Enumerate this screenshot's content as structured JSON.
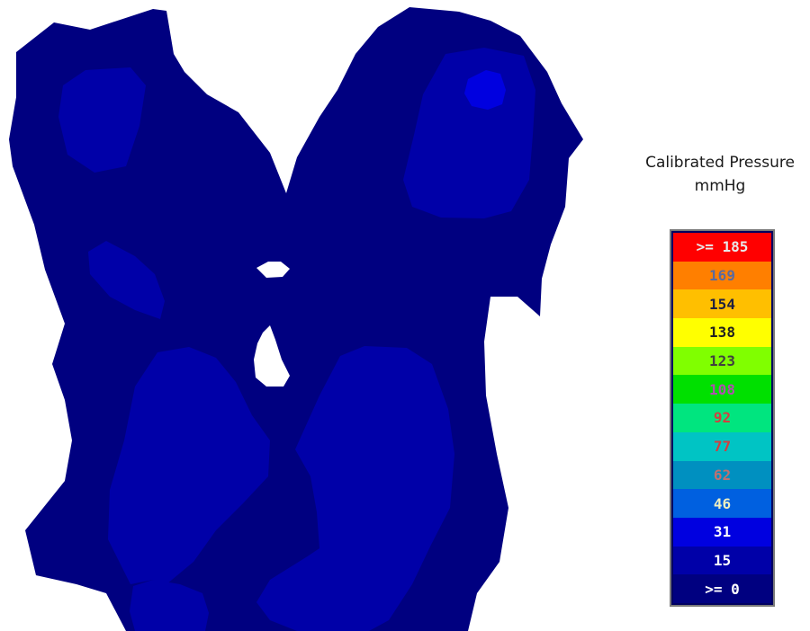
{
  "chart_data": {
    "type": "heatmap",
    "title": "Calibrated Pressure",
    "unit": "mmHg",
    "legend_placement": "right",
    "background": "#ffffff",
    "scale": [
      {
        "label": ">= 185",
        "color": "#ff0000",
        "text_color": "#e8e8e8"
      },
      {
        "label": "169",
        "color": "#ff7f00",
        "text_color": "#5a6aa0"
      },
      {
        "label": "154",
        "color": "#ffbf00",
        "text_color": "#202040"
      },
      {
        "label": "138",
        "color": "#ffff00",
        "text_color": "#202020"
      },
      {
        "label": "123",
        "color": "#80ff00",
        "text_color": "#404040"
      },
      {
        "label": "108",
        "color": "#00e000",
        "text_color": "#b050b0"
      },
      {
        "label": "92",
        "color": "#00e57f",
        "text_color": "#d04040"
      },
      {
        "label": "77",
        "color": "#00c4c4",
        "text_color": "#d04040"
      },
      {
        "label": "62",
        "color": "#0090c0",
        "text_color": "#c07070"
      },
      {
        "label": "46",
        "color": "#0060e0",
        "text_color": "#f0f0c0"
      },
      {
        "label": "31",
        "color": "#0000e0",
        "text_color": "#ffffff"
      },
      {
        "label": "15",
        "color": "#0000a8",
        "text_color": "#ffffff"
      },
      {
        "label": ">= 0",
        "color": "#000080",
        "text_color": "#ffffff"
      }
    ],
    "map_colors": {
      "base": "#000080",
      "mid": "#0000a8",
      "peak": "#0000e0"
    }
  }
}
